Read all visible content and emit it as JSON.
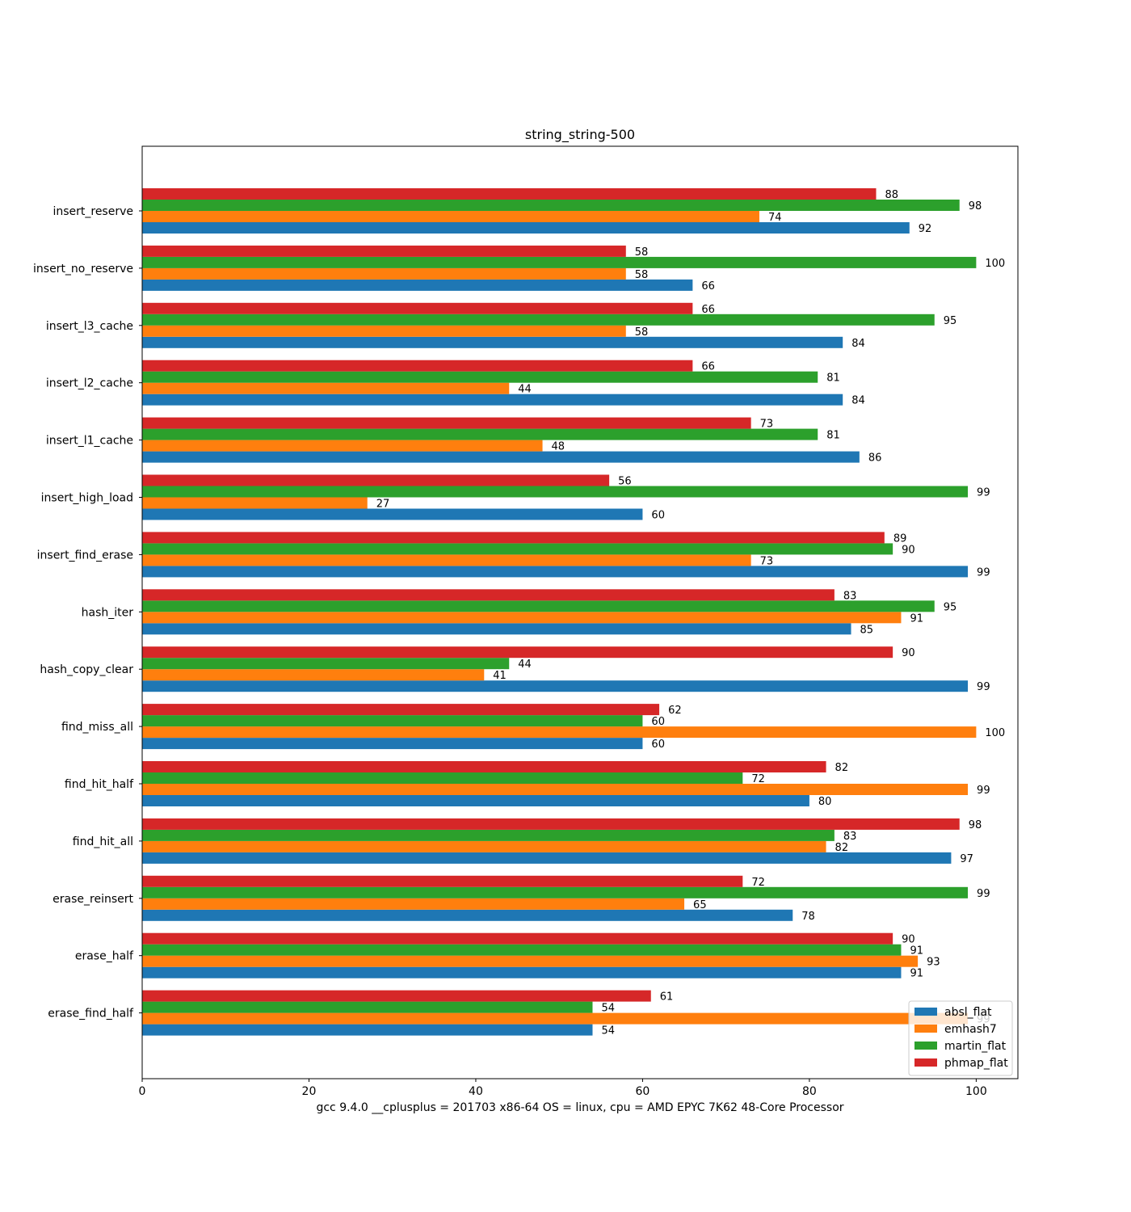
{
  "chart_data": {
    "type": "bar",
    "orientation": "horizontal",
    "title": "string_string-500",
    "xlabel": "gcc 9.4.0 __cplusplus = 201703 x86-64 OS = linux, cpu = AMD EPYC 7K62 48-Core Processor",
    "ylabel": "",
    "xlim": [
      0,
      105
    ],
    "xticks": [
      0,
      20,
      40,
      60,
      80,
      100
    ],
    "grid": false,
    "legend_position": "bottom-right",
    "categories": [
      "insert_reserve",
      "insert_no_reserve",
      "insert_l3_cache",
      "insert_l2_cache",
      "insert_l1_cache",
      "insert_high_load",
      "insert_find_erase",
      "hash_iter",
      "hash_copy_clear",
      "find_miss_all",
      "find_hit_half",
      "find_hit_all",
      "erase_reinsert",
      "erase_half",
      "erase_find_half"
    ],
    "series": [
      {
        "name": "absl_flat",
        "color": "#1f77b4",
        "values": [
          92,
          66,
          84,
          84,
          86,
          60,
          99,
          85,
          99,
          60,
          80,
          97,
          78,
          91,
          54
        ]
      },
      {
        "name": "emhash7",
        "color": "#ff7f0e",
        "values": [
          74,
          58,
          58,
          44,
          48,
          27,
          73,
          91,
          41,
          100,
          99,
          82,
          65,
          93,
          99
        ]
      },
      {
        "name": "martin_flat",
        "color": "#2ca02c",
        "values": [
          98,
          100,
          95,
          81,
          81,
          99,
          90,
          95,
          44,
          60,
          72,
          83,
          99,
          91,
          54
        ]
      },
      {
        "name": "phmap_flat",
        "color": "#d62728",
        "values": [
          88,
          58,
          66,
          66,
          73,
          56,
          89,
          83,
          90,
          62,
          82,
          98,
          72,
          90,
          61
        ]
      }
    ]
  }
}
